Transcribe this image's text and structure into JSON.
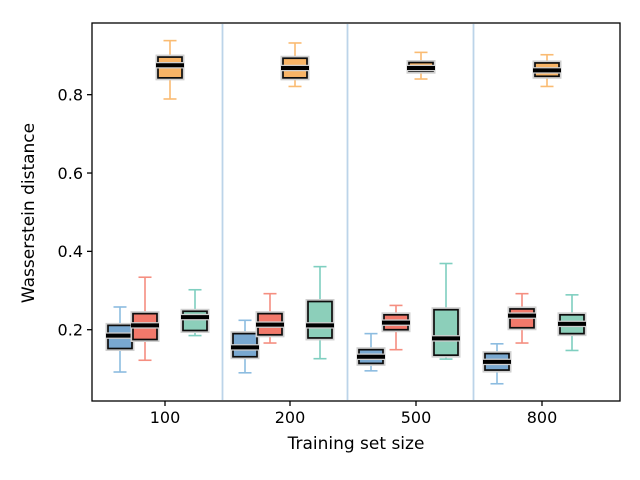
{
  "chart_data": {
    "type": "boxplot",
    "title": "",
    "xlabel": "Training set size",
    "ylabel": "Wasserstein distance",
    "categories": [
      "100",
      "200",
      "500",
      "800"
    ],
    "ytick_labels": [
      "0.2",
      "0.4",
      "0.6",
      "0.8"
    ],
    "ytick_values": [
      0.2,
      0.4,
      0.6,
      0.8
    ],
    "ylim": [
      0.018,
      0.983
    ],
    "grid": "off",
    "legend": "none",
    "group_separators": true,
    "colors": {
      "background": "#ffffff",
      "spine": "#000000",
      "separator_line": "#bcd4e9",
      "box_edge": "#0d0d0d",
      "median_line": "#000000",
      "box_halo": "#cfcfcf"
    },
    "series": [
      {
        "name": "series-1-blue",
        "fill": "#79a8d0",
        "whisker": "#8cbce0",
        "boxes": [
          {
            "whislo": 0.092,
            "q1": 0.152,
            "med": 0.185,
            "q3": 0.211,
            "whishi": 0.258
          },
          {
            "whislo": 0.09,
            "q1": 0.131,
            "med": 0.155,
            "q3": 0.19,
            "whishi": 0.224
          },
          {
            "whislo": 0.095,
            "q1": 0.114,
            "med": 0.131,
            "q3": 0.149,
            "whishi": 0.19
          },
          {
            "whislo": 0.062,
            "q1": 0.097,
            "med": 0.118,
            "q3": 0.139,
            "whishi": 0.164
          }
        ]
      },
      {
        "name": "series-2-red",
        "fill": "#f2796b",
        "whisker": "#f58e80",
        "boxes": [
          {
            "whislo": 0.122,
            "q1": 0.175,
            "med": 0.211,
            "q3": 0.241,
            "whishi": 0.334
          },
          {
            "whislo": 0.166,
            "q1": 0.187,
            "med": 0.213,
            "q3": 0.241,
            "whishi": 0.292
          },
          {
            "whislo": 0.149,
            "q1": 0.2,
            "med": 0.218,
            "q3": 0.238,
            "whishi": 0.262
          },
          {
            "whislo": 0.166,
            "q1": 0.205,
            "med": 0.236,
            "q3": 0.253,
            "whishi": 0.292
          }
        ]
      },
      {
        "name": "series-3-orange",
        "fill": "#f8b466",
        "whisker": "#fabb72",
        "boxes": [
          {
            "whislo": 0.789,
            "q1": 0.843,
            "med": 0.875,
            "q3": 0.896,
            "whishi": 0.938
          },
          {
            "whislo": 0.821,
            "q1": 0.843,
            "med": 0.868,
            "q3": 0.893,
            "whishi": 0.932
          },
          {
            "whislo": 0.84,
            "q1": 0.86,
            "med": 0.868,
            "q3": 0.882,
            "whishi": 0.908
          },
          {
            "whislo": 0.821,
            "q1": 0.847,
            "med": 0.862,
            "q3": 0.881,
            "whishi": 0.902
          }
        ]
      },
      {
        "name": "series-4-green",
        "fill": "#8ccfba",
        "whisker": "#7fcfc0",
        "boxes": [
          {
            "whislo": 0.185,
            "q1": 0.198,
            "med": 0.232,
            "q3": 0.247,
            "whishi": 0.302
          },
          {
            "whislo": 0.126,
            "q1": 0.179,
            "med": 0.211,
            "q3": 0.272,
            "whishi": 0.361
          },
          {
            "whislo": 0.125,
            "q1": 0.135,
            "med": 0.178,
            "q3": 0.251,
            "whishi": 0.369
          },
          {
            "whislo": 0.147,
            "q1": 0.19,
            "med": 0.215,
            "q3": 0.238,
            "whishi": 0.289
          }
        ]
      }
    ]
  }
}
